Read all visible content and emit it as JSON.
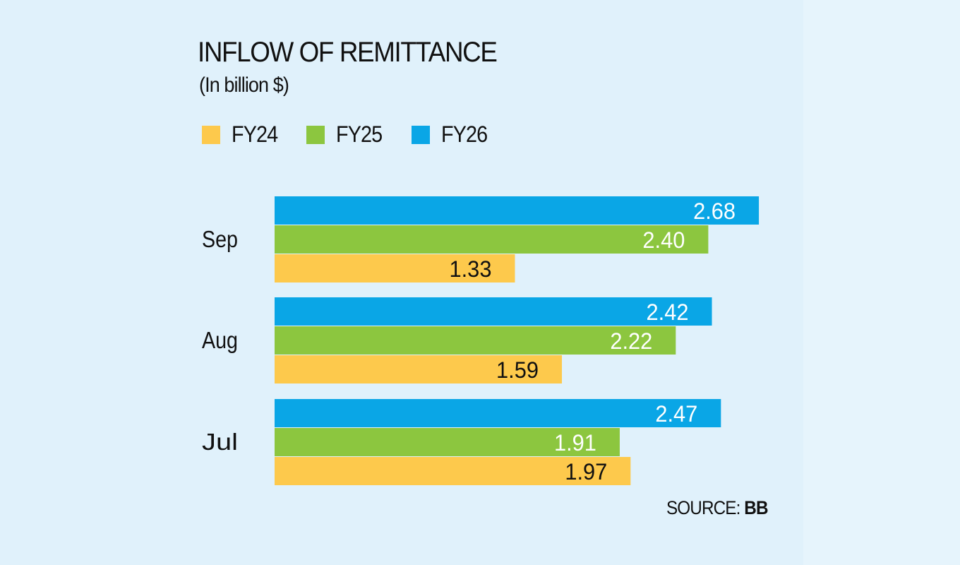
{
  "chart_data": {
    "type": "bar",
    "orientation": "horizontal",
    "title": "INFLOW OF REMITTANCE",
    "subtitle": "(In billion $)",
    "categories": [
      "Sep",
      "Aug",
      "Jul"
    ],
    "series": [
      {
        "name": "FY26",
        "color": "#0aa6e6",
        "values": [
          2.68,
          2.42,
          2.47
        ],
        "labels": [
          "2.68",
          "2.42",
          "2.47"
        ]
      },
      {
        "name": "FY25",
        "color": "#8cc63f",
        "values": [
          2.4,
          2.22,
          1.91
        ],
        "labels": [
          "2.40",
          "2.22",
          "1.91"
        ]
      },
      {
        "name": "FY24",
        "color": "#fdc94c",
        "values": [
          1.33,
          1.59,
          1.97
        ],
        "labels": [
          "1.33",
          "1.59",
          "1.97"
        ]
      }
    ],
    "legend_order": [
      "FY24",
      "FY25",
      "FY26"
    ],
    "legend_position": "top-left",
    "xlim": [
      0,
      2.68
    ],
    "grid": false,
    "source_prefix": "SOURCE:",
    "source_org": "BB"
  }
}
